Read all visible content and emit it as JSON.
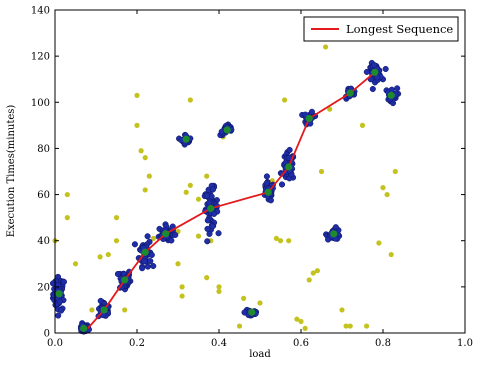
{
  "chart_data": {
    "type": "scatter",
    "xlabel": "load",
    "ylabel": "Execution Times(minutes)",
    "xlim": [
      0.0,
      1.0
    ],
    "ylim": [
      0,
      140
    ],
    "xticks": [
      "0.0",
      "0.2",
      "0.4",
      "0.6",
      "0.8",
      "1.0"
    ],
    "yticks": [
      "0",
      "20",
      "40",
      "60",
      "80",
      "100",
      "120",
      "140"
    ],
    "grid": false,
    "legend": {
      "position": "top-right",
      "entries": [
        "Longest Sequence"
      ]
    },
    "colors": {
      "cluster_point": "#1f2ea8",
      "cluster_center": "#1e8a2e",
      "outlier": "#c4c21f",
      "longest_sequence": "#e41a1c"
    },
    "series": [
      {
        "name": "Longest Sequence",
        "kind": "line",
        "x": [
          0.08,
          0.12,
          0.17,
          0.22,
          0.27,
          0.38,
          0.52,
          0.57,
          0.62,
          0.72,
          0.78
        ],
        "y": [
          2,
          10,
          23,
          35,
          43,
          54,
          61,
          72,
          93,
          104,
          113
        ]
      },
      {
        "kind": "cluster_centers",
        "x": [
          0.01,
          0.07,
          0.12,
          0.17,
          0.22,
          0.27,
          0.32,
          0.38,
          0.42,
          0.48,
          0.52,
          0.57,
          0.62,
          0.68,
          0.72,
          0.78,
          0.82
        ],
        "y": [
          17,
          2,
          10,
          23,
          35,
          43,
          84,
          54,
          88,
          9,
          61,
          72,
          93,
          43,
          104,
          113,
          103
        ],
        "spread_x": [
          0.012,
          0.01,
          0.012,
          0.012,
          0.012,
          0.014,
          0.01,
          0.014,
          0.014,
          0.014,
          0.012,
          0.012,
          0.01,
          0.014,
          0.012,
          0.014,
          0.012
        ],
        "spread_y": [
          6,
          1.5,
          3,
          4,
          5,
          3,
          1.8,
          7,
          2,
          2,
          3.5,
          5,
          2.5,
          2,
          2,
          3,
          2.5
        ],
        "n": [
          55,
          25,
          30,
          40,
          50,
          40,
          18,
          60,
          25,
          22,
          35,
          50,
          20,
          28,
          20,
          40,
          28
        ]
      },
      {
        "kind": "outliers",
        "x": [
          0.0,
          0.03,
          0.03,
          0.05,
          0.09,
          0.11,
          0.13,
          0.15,
          0.15,
          0.17,
          0.2,
          0.2,
          0.21,
          0.22,
          0.23,
          0.22,
          0.24,
          0.3,
          0.3,
          0.31,
          0.31,
          0.32,
          0.33,
          0.33,
          0.35,
          0.35,
          0.37,
          0.37,
          0.38,
          0.4,
          0.41,
          0.4,
          0.45,
          0.46,
          0.5,
          0.53,
          0.54,
          0.55,
          0.56,
          0.57,
          0.59,
          0.6,
          0.61,
          0.62,
          0.63,
          0.64,
          0.65,
          0.66,
          0.67,
          0.68,
          0.7,
          0.71,
          0.72,
          0.75,
          0.76,
          0.79,
          0.8,
          0.81,
          0.82,
          0.83
        ],
        "y": [
          40,
          60,
          50,
          30,
          10,
          33,
          34,
          50,
          40,
          10,
          103,
          90,
          79,
          76,
          68,
          62,
          41,
          44,
          30,
          20,
          16,
          61,
          101,
          64,
          42,
          58,
          68,
          24,
          40,
          20,
          85,
          18,
          3,
          15,
          13,
          66,
          41,
          40,
          101,
          40,
          6,
          5,
          2,
          23,
          26,
          27,
          70,
          124,
          97,
          45,
          10,
          3,
          3,
          90,
          3,
          39,
          63,
          60,
          34,
          70
        ]
      }
    ]
  }
}
